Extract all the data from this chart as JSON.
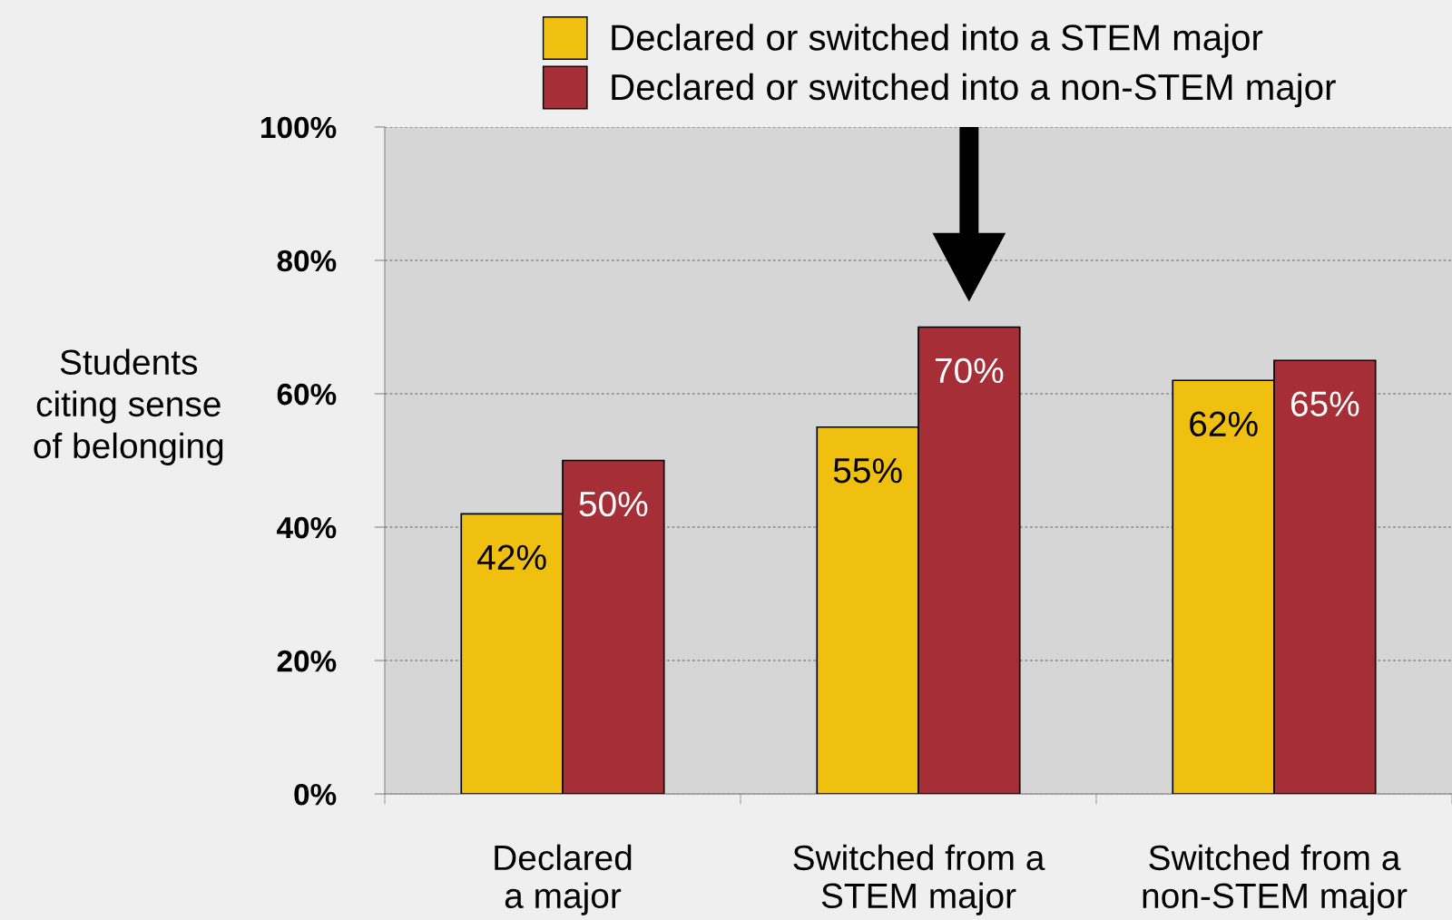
{
  "chart_data": {
    "type": "bar",
    "ylabel": "Students\nciting sense\nof belonging",
    "categories": [
      "Declared\na major",
      "Switched from a\nSTEM major",
      "Switched from a\nnon-STEM major"
    ],
    "series": [
      {
        "name": "Declared or switched into a STEM major",
        "color": "#f0c010",
        "values": [
          42,
          55,
          62
        ]
      },
      {
        "name": "Declared or switched into a non-STEM major",
        "color": "#a62e36",
        "values": [
          50,
          70,
          65
        ]
      }
    ],
    "ylim": [
      0,
      100
    ],
    "yticks": [
      {
        "value": 0,
        "label": "0%"
      },
      {
        "value": 20,
        "label": "20%"
      },
      {
        "value": 40,
        "label": "40%"
      },
      {
        "value": 60,
        "label": "60%"
      },
      {
        "value": 80,
        "label": "80%"
      },
      {
        "value": 100,
        "label": "100%"
      }
    ],
    "value_labels": [
      [
        "42%",
        "55%",
        "62%"
      ],
      [
        "50%",
        "70%",
        "65%"
      ]
    ],
    "grid": "y",
    "legend": "top"
  }
}
